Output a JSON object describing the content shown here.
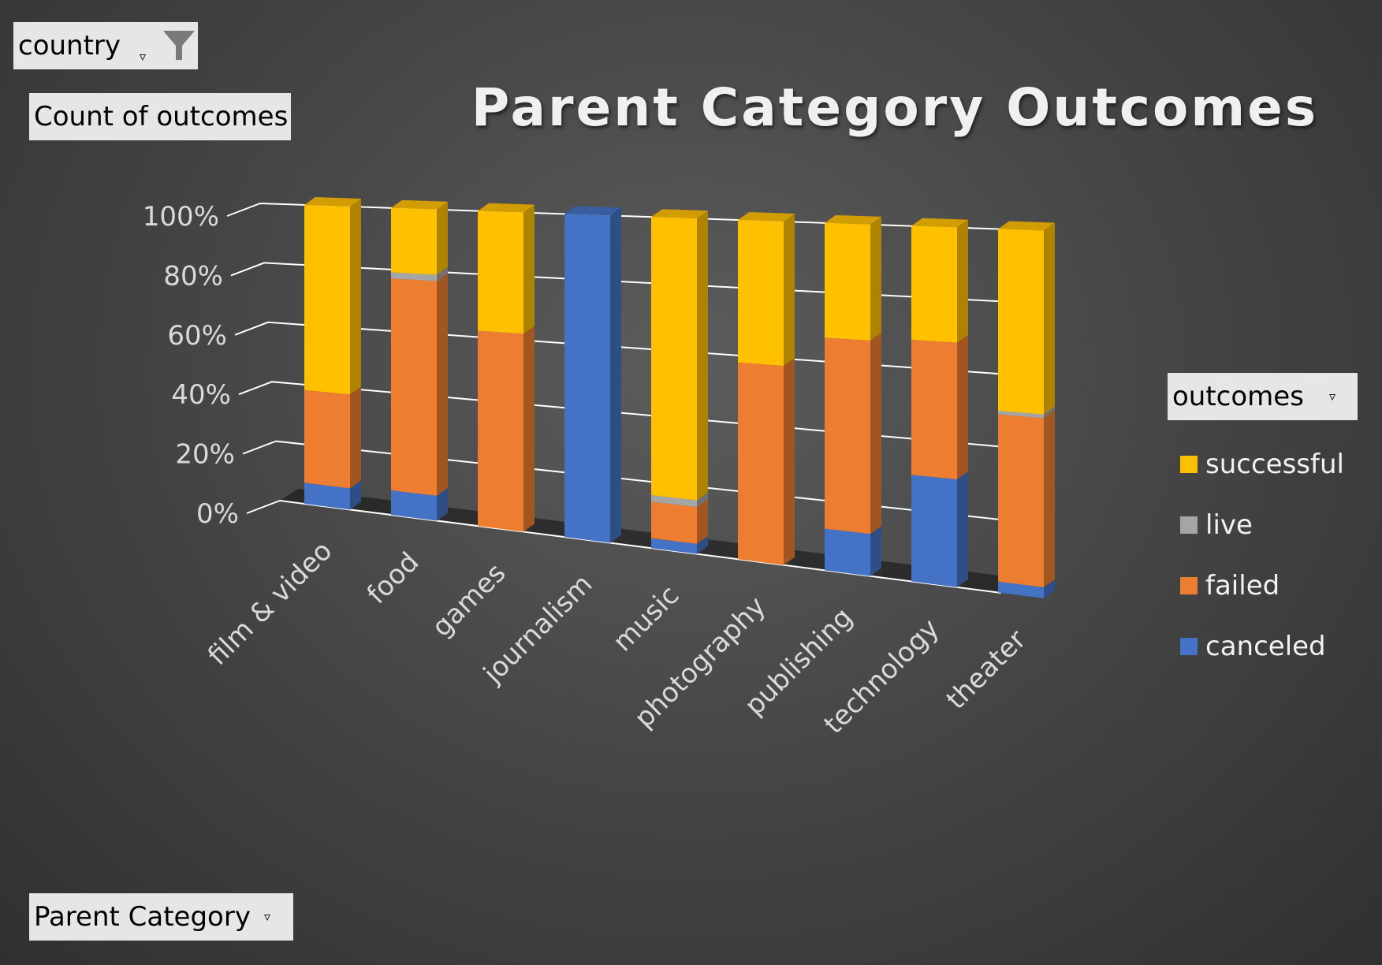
{
  "filters": {
    "country_label": "country",
    "values_label": "Count of outcomes",
    "axis_field_label": "Parent Category",
    "legend_field_label": "outcomes"
  },
  "colors": {
    "successful": "#ffc000",
    "live": "#a5a5a5",
    "failed": "#ed7d31",
    "canceled": "#4472c4"
  },
  "chart_data": {
    "type": "bar",
    "variant": "3d-100%-stacked-column",
    "title": "Parent Category Outcomes",
    "xlabel": "",
    "ylabel": "",
    "ylim": [
      0,
      100
    ],
    "yticks": [
      "0%",
      "20%",
      "40%",
      "60%",
      "80%",
      "100%"
    ],
    "grid": true,
    "legend_position": "right",
    "categories": [
      "film & video",
      "food",
      "games",
      "journalism",
      "music",
      "photography",
      "publishing",
      "technology",
      "theater"
    ],
    "series": [
      {
        "name": "canceled",
        "color_key": "canceled",
        "values": [
          7,
          8,
          0,
          100,
          3,
          0,
          12,
          30,
          3
        ]
      },
      {
        "name": "failed",
        "color_key": "failed",
        "values": [
          31,
          69,
          62,
          0,
          11,
          58,
          55,
          38,
          46
        ]
      },
      {
        "name": "live",
        "color_key": "live",
        "values": [
          0,
          2,
          0,
          0,
          2,
          0,
          0,
          0,
          1
        ]
      },
      {
        "name": "successful",
        "color_key": "successful",
        "values": [
          62,
          21,
          38,
          0,
          84,
          42,
          33,
          32,
          50
        ]
      }
    ],
    "legend_order": [
      "successful",
      "live",
      "failed",
      "canceled"
    ]
  }
}
